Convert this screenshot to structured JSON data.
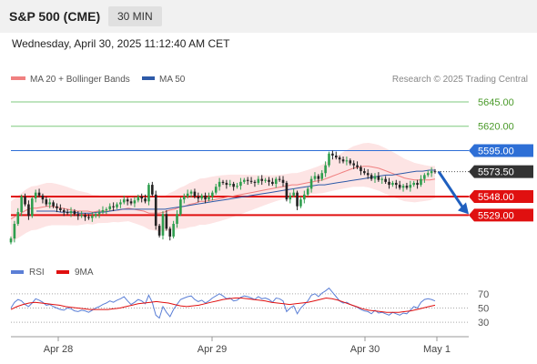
{
  "header": {
    "title": "S&P 500 (CME)",
    "timeframe": "30 MIN"
  },
  "datetime": "Wednesday, April 30, 2025 11:12:40 AM CET",
  "legend": {
    "ma20": {
      "label": "MA 20 + Bollinger Bands",
      "color": "#f08080"
    },
    "ma50": {
      "label": "MA 50",
      "color": "#2e5aa8"
    },
    "credit": "Research © 2025 Trading Central"
  },
  "rsi_legend": {
    "rsi": {
      "label": "RSI",
      "color": "#5b7fd6"
    },
    "ma9": {
      "label": "9MA",
      "color": "#e01010"
    }
  },
  "price_labels": [
    {
      "value": 5645.0,
      "text": "5645.00",
      "style": "target"
    },
    {
      "value": 5620.0,
      "text": "5620.00",
      "style": "target"
    },
    {
      "value": 5595.0,
      "text": "5595.00",
      "style": "pivot"
    },
    {
      "value": 5573.5,
      "text": "5573.50",
      "style": "last"
    },
    {
      "value": 5548.0,
      "text": "5548.00",
      "style": "support"
    },
    {
      "value": 5529.0,
      "text": "5529.00",
      "style": "support"
    }
  ],
  "rsi_ticks": [
    "70",
    "50",
    "30"
  ],
  "x_labels": [
    "Apr 28",
    "Apr 29",
    "Apr 30",
    "May 1"
  ],
  "colors": {
    "up": "#2e9e4e",
    "down": "#222222",
    "target": "#7fc97f",
    "pivot": "#2e6fd6",
    "support": "#e01010",
    "last": "#333333",
    "band": "#fde4e4"
  },
  "chart_data": {
    "type": "candlestick",
    "x_domain": [
      "Apr 28",
      "May 1"
    ],
    "ylim": [
      5492,
      5658
    ],
    "rsi_ylim": [
      20,
      80
    ],
    "closes": [
      5505,
      5520,
      5532,
      5548,
      5540,
      5528,
      5546,
      5552,
      5549,
      5545,
      5540,
      5542,
      5538,
      5536,
      5534,
      5532,
      5531,
      5533,
      5530,
      5528,
      5529,
      5527,
      5526,
      5528,
      5530,
      5532,
      5534,
      5535,
      5538,
      5537,
      5540,
      5542,
      5545,
      5543,
      5541,
      5544,
      5548,
      5546,
      5543,
      5560,
      5550,
      5518,
      5508,
      5530,
      5515,
      5507,
      5520,
      5530,
      5545,
      5548,
      5551,
      5553,
      5548,
      5546,
      5549,
      5545,
      5548,
      5552,
      5558,
      5563,
      5562,
      5560,
      5561,
      5558,
      5559,
      5563,
      5565,
      5564,
      5563,
      5562,
      5566,
      5564,
      5565,
      5563,
      5561,
      5566,
      5565,
      5562,
      5545,
      5549,
      5552,
      5538,
      5545,
      5550,
      5556,
      5566,
      5569,
      5566,
      5572,
      5580,
      5592,
      5590,
      5588,
      5586,
      5584,
      5585,
      5582,
      5580,
      5578,
      5574,
      5572,
      5570,
      5566,
      5569,
      5565,
      5566,
      5563,
      5560,
      5562,
      5560,
      5557,
      5559,
      5557,
      5560,
      5562,
      5560,
      5566,
      5570,
      5572,
      5574,
      5573.5
    ],
    "ma20": [
      5525,
      5528,
      5531,
      5534,
      5536,
      5536,
      5537,
      5538,
      5538,
      5537,
      5536,
      5535,
      5534,
      5533,
      5533,
      5533,
      5532,
      5533,
      5533,
      5533,
      5534,
      5534,
      5535,
      5536,
      5535,
      5534,
      5533,
      5531,
      5531,
      5531,
      5532,
      5534,
      5535,
      5537,
      5538,
      5540,
      5541,
      5543,
      5543,
      5544,
      5545,
      5546,
      5547,
      5548,
      5549,
      5550,
      5551,
      5552,
      5553,
      5554,
      5555,
      5556,
      5557,
      5558,
      5559,
      5560,
      5560,
      5561,
      5562,
      5563,
      5564,
      5565,
      5567,
      5569,
      5571,
      5573,
      5575,
      5577,
      5578,
      5579,
      5579,
      5578,
      5577,
      5575,
      5573,
      5571,
      5569,
      5567,
      5566,
      5565,
      5565,
      5565,
      5565,
      5566
    ],
    "ma50": [
      5533,
      5533,
      5533,
      5533,
      5532,
      5532,
      5532,
      5531,
      5531,
      5531,
      5532,
      5532,
      5533,
      5534,
      5535,
      5535,
      5535,
      5535,
      5535,
      5535,
      5535,
      5535,
      5536,
      5537,
      5538,
      5539,
      5540,
      5541,
      5542,
      5543,
      5544,
      5545,
      5546,
      5547,
      5548,
      5549,
      5550,
      5551,
      5552,
      5553,
      5554,
      5555,
      5556,
      5557,
      5558,
      5559,
      5560,
      5560,
      5561,
      5562,
      5563,
      5564,
      5565,
      5566,
      5567,
      5568,
      5569,
      5570,
      5570,
      5571,
      5572,
      5573,
      5574,
      5574,
      5575,
      5575
    ],
    "rsi": [
      50,
      58,
      62,
      60,
      55,
      52,
      57,
      63,
      61,
      58,
      54,
      55,
      52,
      50,
      48,
      47,
      50,
      49,
      46,
      45,
      47,
      46,
      44,
      47,
      50,
      52,
      55,
      57,
      60,
      58,
      61,
      63,
      66,
      60,
      55,
      58,
      62,
      60,
      56,
      68,
      58,
      40,
      36,
      52,
      44,
      38,
      48,
      55,
      62,
      64,
      66,
      67,
      62,
      59,
      61,
      57,
      60,
      64,
      67,
      70,
      67,
      63,
      64,
      60,
      61,
      65,
      67,
      66,
      64,
      62,
      66,
      63,
      64,
      62,
      58,
      64,
      63,
      60,
      45,
      50,
      53,
      42,
      50,
      55,
      60,
      68,
      70,
      66,
      71,
      74,
      78,
      72,
      66,
      60,
      57,
      58,
      55,
      53,
      51,
      48,
      46,
      45,
      42,
      47,
      43,
      44,
      42,
      40,
      44,
      42,
      40,
      43,
      42,
      47,
      52,
      50,
      58,
      62,
      63,
      62,
      60
    ],
    "rsi_ma9": [
      48,
      52,
      55,
      57,
      58,
      57,
      56,
      55,
      54,
      52,
      51,
      50,
      49,
      48,
      48,
      48,
      48,
      49,
      50,
      52,
      54,
      56,
      57,
      58,
      59,
      58,
      57,
      55,
      53,
      52,
      53,
      54,
      56,
      58,
      60,
      62,
      63,
      64,
      64,
      63,
      62,
      61,
      60,
      58,
      57,
      56,
      55,
      56,
      57,
      58,
      60,
      62,
      64,
      63,
      61,
      58,
      55,
      52,
      49,
      47,
      46,
      45,
      44,
      44,
      44,
      45,
      46,
      48,
      50,
      52,
      54
    ]
  }
}
